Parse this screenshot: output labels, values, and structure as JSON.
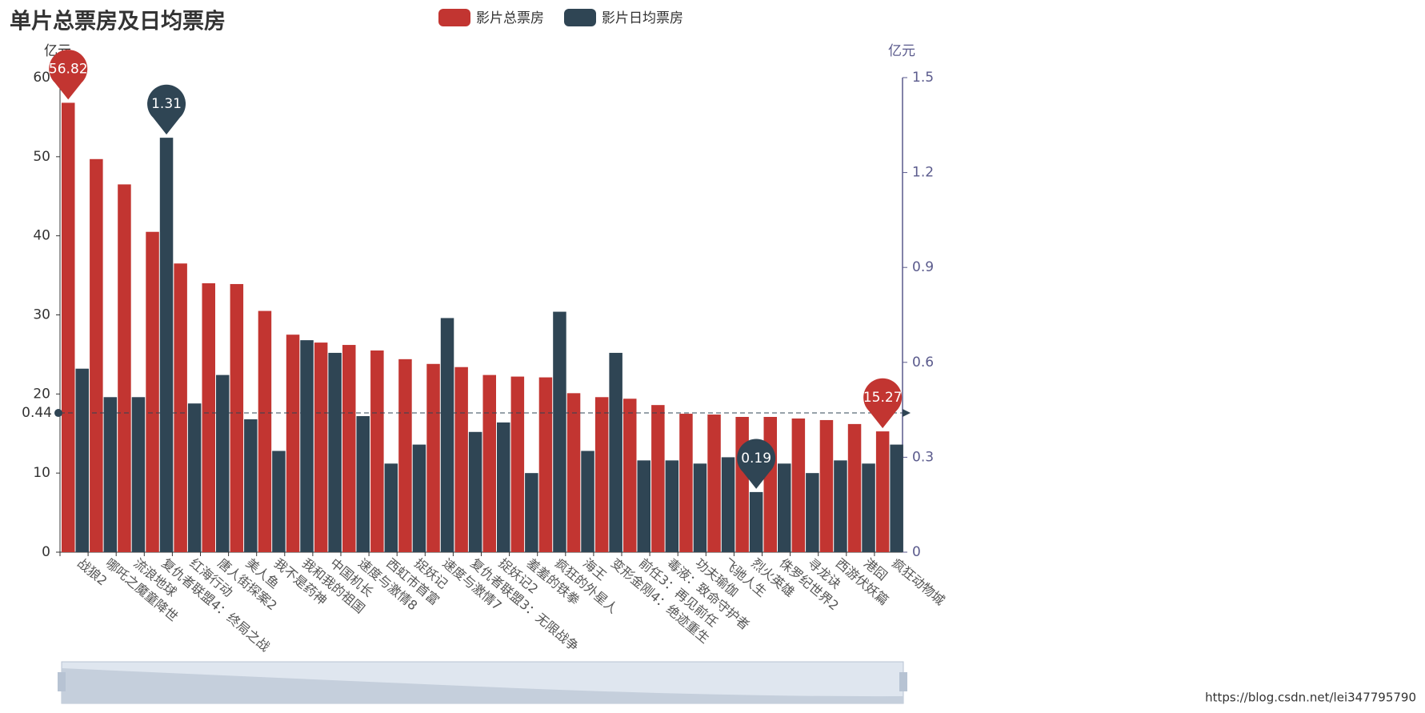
{
  "chart_data": {
    "type": "bar",
    "title": "单片总票房及日均票房",
    "categories": [
      "战狼2",
      "哪吒之魔童降世",
      "流浪地球",
      "复仇者联盟4：终局之战",
      "红海行动",
      "唐人街探案2",
      "美人鱼",
      "我不是药神",
      "我和我的祖国",
      "中国机长",
      "速度与激情8",
      "西虹市首富",
      "捉妖记",
      "速度与激情7",
      "复仇者联盟3：无限战争",
      "捉妖记2",
      "羞羞的铁拳",
      "疯狂的外星人",
      "海王",
      "变形金刚4：绝迹重生",
      "前任3：再见前任",
      "毒液：致命守护者",
      "功夫瑜伽",
      "飞驰人生",
      "烈火英雄",
      "侏罗纪世界2",
      "寻龙诀",
      "西游伏妖篇",
      "港囧",
      "疯狂动物城"
    ],
    "series": [
      {
        "name": "影片总票房",
        "color": "#c23531",
        "values": [
          56.82,
          49.7,
          46.5,
          40.5,
          36.5,
          34.0,
          33.9,
          30.5,
          27.5,
          26.5,
          26.2,
          25.5,
          24.4,
          23.8,
          23.4,
          22.4,
          22.2,
          22.1,
          20.1,
          19.6,
          19.4,
          18.6,
          17.5,
          17.4,
          17.1,
          17.1,
          16.9,
          16.7,
          16.2,
          15.27
        ]
      },
      {
        "name": "影片日均票房",
        "color": "#2f4554",
        "axis": "y2",
        "values": [
          0.58,
          0.49,
          0.49,
          1.31,
          0.47,
          0.56,
          0.42,
          0.32,
          0.67,
          0.63,
          0.43,
          0.28,
          0.34,
          0.74,
          0.38,
          0.41,
          0.25,
          0.76,
          0.32,
          0.63,
          0.29,
          0.29,
          0.28,
          0.3,
          0.19,
          0.28,
          0.25,
          0.29,
          0.28,
          0.34
        ]
      }
    ],
    "ylabel": "亿元",
    "y2label": "亿元",
    "ylim": [
      0,
      60
    ],
    "yticks": [
      0,
      10,
      20,
      30,
      40,
      50,
      60
    ],
    "y2lim": [
      0,
      1.5
    ],
    "y2ticks": [
      0,
      0.3,
      0.6,
      0.9,
      1.2,
      1.5
    ],
    "mark_line": {
      "axis": "y2",
      "value": 0.44
    },
    "watermark": "https://blog.csdn.net/lei347795790"
  }
}
